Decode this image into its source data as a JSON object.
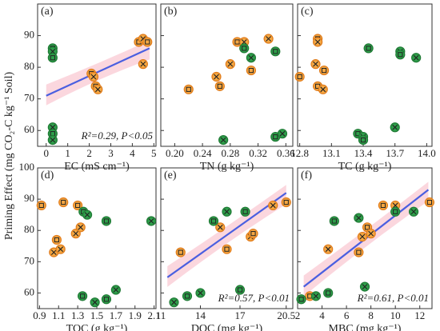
{
  "ylabel": "Priming Effect (mg CO₂-C kg⁻¹ Soil)",
  "chart_data": [
    {
      "type": "scatter",
      "label": "(a)",
      "xlabel": "EC (mS cm⁻¹)",
      "xlim": [
        -0.4,
        5.1
      ],
      "xticks": [
        0,
        1,
        2,
        3,
        4,
        5
      ],
      "ylim": [
        55,
        100
      ],
      "yticks": [
        60,
        70,
        80,
        90
      ],
      "series": [
        {
          "color": "#f5a742",
          "x": [
            4.3,
            4.5,
            4.7,
            4.5,
            2.1,
            2.2,
            2.3,
            2.4
          ],
          "values": [
            88,
            89,
            88,
            81,
            78,
            77,
            74,
            73
          ]
        },
        {
          "color": "#2e9e4a",
          "x": [
            0.3,
            0.3,
            0.3,
            0.3,
            0.3,
            0.3
          ],
          "values": [
            86,
            85,
            83,
            61,
            59,
            57
          ]
        }
      ],
      "fit": {
        "x": [
          0,
          4.8
        ],
        "y": [
          71,
          86
        ]
      },
      "annotation": "R²=0.29, P<0.05"
    },
    {
      "type": "scatter",
      "label": "(b)",
      "xlabel": "TN (g kg⁻¹)",
      "xlim": [
        0.18,
        0.37
      ],
      "xticks": [
        {
          "value": 0.2,
          "label": "0.20"
        },
        0.24,
        0.28,
        0.32,
        0.36
      ],
      "ylim": [
        55,
        100
      ],
      "yticks": [
        60,
        70,
        80,
        90
      ],
      "series": [
        {
          "color": "#f5a742",
          "x": [
            0.22,
            0.26,
            0.265,
            0.28,
            0.29,
            0.3,
            0.31,
            0.335
          ],
          "values": [
            73,
            77,
            74,
            81,
            88,
            88,
            79,
            89
          ]
        },
        {
          "color": "#2e9e4a",
          "x": [
            0.3,
            0.31,
            0.345,
            0.27,
            0.345,
            0.355
          ],
          "values": [
            86,
            83,
            85,
            57,
            58,
            59
          ]
        }
      ]
    },
    {
      "type": "scatter",
      "label": "(c)",
      "xlabel": "TC (g kg⁻¹)",
      "xlim": [
        12.78,
        14.05
      ],
      "xticks": [
        12.8,
        13.1,
        13.4,
        13.7,
        {
          "value": 14,
          "label": "14.0"
        }
      ],
      "ylim": [
        55,
        100
      ],
      "yticks": [
        60,
        70,
        80,
        90
      ],
      "series": [
        {
          "color": "#f5a742",
          "x": [
            12.8,
            12.95,
            12.97,
            12.97,
            12.97,
            13.02,
            13.03
          ],
          "values": [
            77,
            81,
            89,
            88,
            74,
            73,
            79
          ]
        },
        {
          "color": "#2e9e4a",
          "x": [
            13.45,
            13.75,
            13.75,
            13.9,
            13.35,
            13.4,
            13.4,
            13.7
          ],
          "values": [
            86,
            85,
            84,
            83,
            59,
            58,
            57,
            61
          ]
        }
      ]
    },
    {
      "type": "scatter",
      "label": "(d)",
      "xlabel": "TOC (g kg⁻¹)",
      "xlim": [
        0.88,
        2.12
      ],
      "xticks": [
        0.9,
        1.1,
        1.3,
        1.5,
        1.7,
        1.9,
        2.1
      ],
      "ylim": [
        55,
        100
      ],
      "yticks": [
        60,
        70,
        80,
        90,
        100
      ],
      "series": [
        {
          "color": "#f5a742",
          "x": [
            0.92,
            1.05,
            1.08,
            1.12,
            1.15,
            1.28,
            1.3,
            1.33
          ],
          "values": [
            88,
            73,
            77,
            74,
            89,
            79,
            88,
            81
          ]
        },
        {
          "color": "#2e9e4a",
          "x": [
            1.36,
            1.4,
            1.6,
            2.07,
            1.35,
            1.48,
            1.6,
            1.7
          ],
          "values": [
            86,
            85,
            83,
            83,
            59,
            57,
            58,
            61
          ]
        }
      ]
    },
    {
      "type": "scatter",
      "label": "(e)",
      "xlabel": "DOC (mg kg⁻¹)",
      "xlim": [
        11,
        21
      ],
      "xticks": [
        11,
        14,
        17,
        20.5
      ],
      "ylim": [
        55,
        100
      ],
      "yticks": [
        60,
        70,
        80,
        90,
        100
      ],
      "series": [
        {
          "color": "#f5a742",
          "x": [
            12.5,
            15.5,
            16,
            17.8,
            18,
            19.5,
            20.5
          ],
          "values": [
            73,
            81,
            74,
            78,
            79,
            88,
            89
          ]
        },
        {
          "color": "#2e9e4a",
          "x": [
            15,
            16,
            17.4,
            12,
            13,
            14,
            17
          ],
          "values": [
            83,
            86,
            86,
            57,
            59,
            60,
            61
          ]
        }
      ],
      "fit": {
        "x": [
          11.5,
          20.5
        ],
        "y": [
          65,
          92
        ]
      },
      "annotation": "R²=0.57, P<0.01"
    },
    {
      "type": "scatter",
      "label": "(f)",
      "xlabel": "MBC (mg kg⁻¹)",
      "xlim": [
        2,
        13
      ],
      "xticks": [
        2,
        4,
        6,
        8,
        10,
        12
      ],
      "ylim": [
        55,
        100
      ],
      "yticks": [
        60,
        70,
        80,
        90,
        100
      ],
      "series": [
        {
          "color": "#f5a742",
          "x": [
            3,
            4.5,
            7,
            7.3,
            7.7,
            8,
            9,
            10,
            12.8
          ],
          "values": [
            59,
            74,
            73,
            78,
            81,
            79,
            88,
            88,
            89
          ]
        },
        {
          "color": "#2e9e4a",
          "x": [
            5,
            7,
            10,
            11.5,
            2.3,
            3.5,
            4.5,
            7.5
          ],
          "values": [
            83,
            84,
            86,
            86,
            58,
            59,
            60,
            62
          ]
        }
      ],
      "fit": {
        "x": [
          2.5,
          12.7
        ],
        "y": [
          62,
          93
        ]
      },
      "annotation": "R²=0.61, P<0.01"
    }
  ]
}
